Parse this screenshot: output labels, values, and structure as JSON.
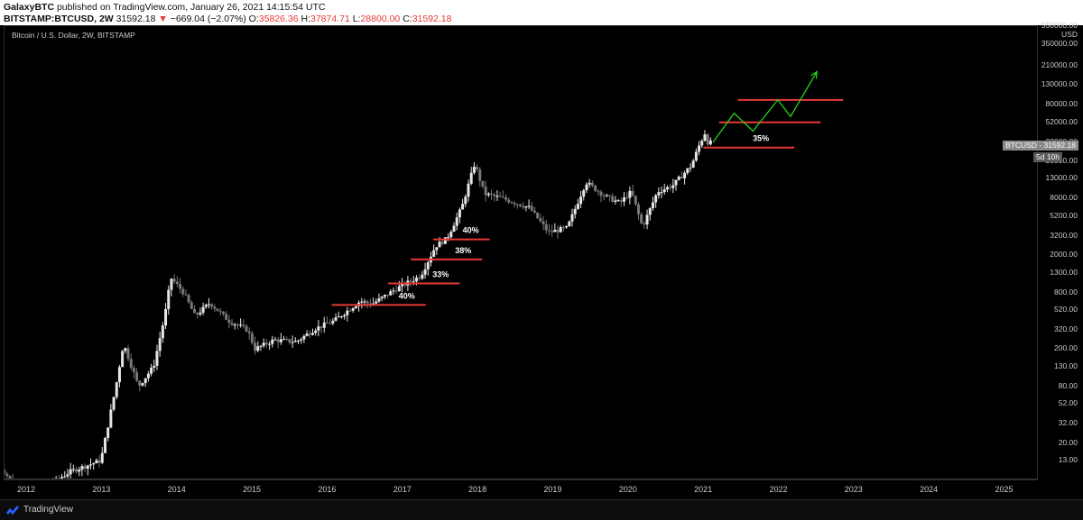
{
  "header": {
    "author": "GalaxyBTC",
    "published_text": " published on TradingView.com, January 26, 2021 14:15:54 UTC",
    "symbol": "BITSTAMP:BTCUSD, 2W",
    "price": "31592.18",
    "change": "−669.04 (−2.07%)",
    "open_label": "O:",
    "open_value": "35826.36",
    "high_label": "H:",
    "high_value": "37874.71",
    "low_label": "L:",
    "low_value": "28800.00",
    "close_label": "C:",
    "close_value": "31592.18"
  },
  "chart": {
    "legend": "Bitcoin / U.S. Dollar, 2W, BITSTAMP",
    "currency": "USD",
    "price_tag": "BTCUSD · 31592.18",
    "countdown_tag": "5d 10h",
    "up_color": "#e6e6e6",
    "down_color": "#777777",
    "support_color": "#e53935",
    "projection_color": "#27d01b"
  },
  "footer": {
    "brand": "TradingView"
  },
  "chart_data": {
    "type": "line",
    "scale": "log",
    "title": "Bitcoin / U.S. Dollar, 2W, BITSTAMP",
    "ylabel": "USD",
    "ylim": [
      8,
      550000
    ],
    "y_ticks": [
      "550000.00",
      "350000.00",
      "210000.00",
      "130000.00",
      "80000.00",
      "52000.00",
      "32000.00",
      "20000.00",
      "13000.00",
      "8000.00",
      "5200.00",
      "3200.00",
      "2000.00",
      "1300.00",
      "800.00",
      "520.00",
      "320.00",
      "200.00",
      "130.00",
      "80.00",
      "52.00",
      "32.00",
      "20.00",
      "13.00"
    ],
    "x_ticks": [
      "2012",
      "2013",
      "2014",
      "2015",
      "2016",
      "2017",
      "2018",
      "2019",
      "2020",
      "2021",
      "2022",
      "2023",
      "2024",
      "2025"
    ],
    "series": [
      {
        "values": [
          {
            "x": 2011.6,
            "y": 13
          },
          {
            "x": 2012.0,
            "y": 5
          },
          {
            "x": 2012.6,
            "y": 10
          },
          {
            "x": 2013.0,
            "y": 13
          },
          {
            "x": 2013.2,
            "y": 80
          },
          {
            "x": 2013.3,
            "y": 230
          },
          {
            "x": 2013.5,
            "y": 80
          },
          {
            "x": 2013.7,
            "y": 130
          },
          {
            "x": 2013.85,
            "y": 450
          },
          {
            "x": 2013.93,
            "y": 1150
          },
          {
            "x": 2014.1,
            "y": 800
          },
          {
            "x": 2014.25,
            "y": 450
          },
          {
            "x": 2014.45,
            "y": 620
          },
          {
            "x": 2014.7,
            "y": 400
          },
          {
            "x": 2014.95,
            "y": 320
          },
          {
            "x": 2015.05,
            "y": 200
          },
          {
            "x": 2015.3,
            "y": 250
          },
          {
            "x": 2015.6,
            "y": 240
          },
          {
            "x": 2015.85,
            "y": 330
          },
          {
            "x": 2016.1,
            "y": 400
          },
          {
            "x": 2016.45,
            "y": 650
          },
          {
            "x": 2016.6,
            "y": 600
          },
          {
            "x": 2016.95,
            "y": 900
          },
          {
            "x": 2017.25,
            "y": 1200
          },
          {
            "x": 2017.45,
            "y": 2500
          },
          {
            "x": 2017.6,
            "y": 3000
          },
          {
            "x": 2017.8,
            "y": 6500
          },
          {
            "x": 2017.97,
            "y": 19000
          },
          {
            "x": 2018.1,
            "y": 9000
          },
          {
            "x": 2018.35,
            "y": 8000
          },
          {
            "x": 2018.7,
            "y": 6400
          },
          {
            "x": 2018.95,
            "y": 3500
          },
          {
            "x": 2019.2,
            "y": 3900
          },
          {
            "x": 2019.45,
            "y": 12000
          },
          {
            "x": 2019.7,
            "y": 8500
          },
          {
            "x": 2019.9,
            "y": 7200
          },
          {
            "x": 2020.05,
            "y": 9500
          },
          {
            "x": 2020.2,
            "y": 4000
          },
          {
            "x": 2020.4,
            "y": 9500
          },
          {
            "x": 2020.6,
            "y": 11000
          },
          {
            "x": 2020.85,
            "y": 18000
          },
          {
            "x": 2020.95,
            "y": 29000
          },
          {
            "x": 2021.03,
            "y": 40000
          },
          {
            "x": 2021.07,
            "y": 31592
          }
        ]
      }
    ],
    "annotations": [
      {
        "type": "support",
        "x_start": 2016.05,
        "x_end": 2017.3,
        "y": 590,
        "label": "40%"
      },
      {
        "type": "support",
        "x_start": 2016.8,
        "x_end": 2017.75,
        "y": 1000,
        "label": "33%"
      },
      {
        "type": "support",
        "x_start": 2017.1,
        "x_end": 2018.05,
        "y": 1800,
        "label": "38%"
      },
      {
        "type": "support",
        "x_start": 2017.4,
        "x_end": 2018.15,
        "y": 2950,
        "label": "40%"
      },
      {
        "type": "support",
        "x_start": 2020.99,
        "x_end": 2022.2,
        "y": 28000,
        "label": "35%"
      },
      {
        "type": "resistance",
        "x_start": 2021.2,
        "x_end": 2022.55,
        "y": 52000,
        "label": ""
      },
      {
        "type": "resistance",
        "x_start": 2021.45,
        "x_end": 2022.85,
        "y": 90000,
        "label": ""
      }
    ],
    "projection": [
      {
        "x": 2021.12,
        "y": 32000
      },
      {
        "x": 2021.4,
        "y": 65000
      },
      {
        "x": 2021.65,
        "y": 42000
      },
      {
        "x": 2021.98,
        "y": 90000
      },
      {
        "x": 2022.15,
        "y": 60000
      },
      {
        "x": 2022.5,
        "y": 180000
      }
    ],
    "grid": false,
    "legend_position": "top-left"
  }
}
